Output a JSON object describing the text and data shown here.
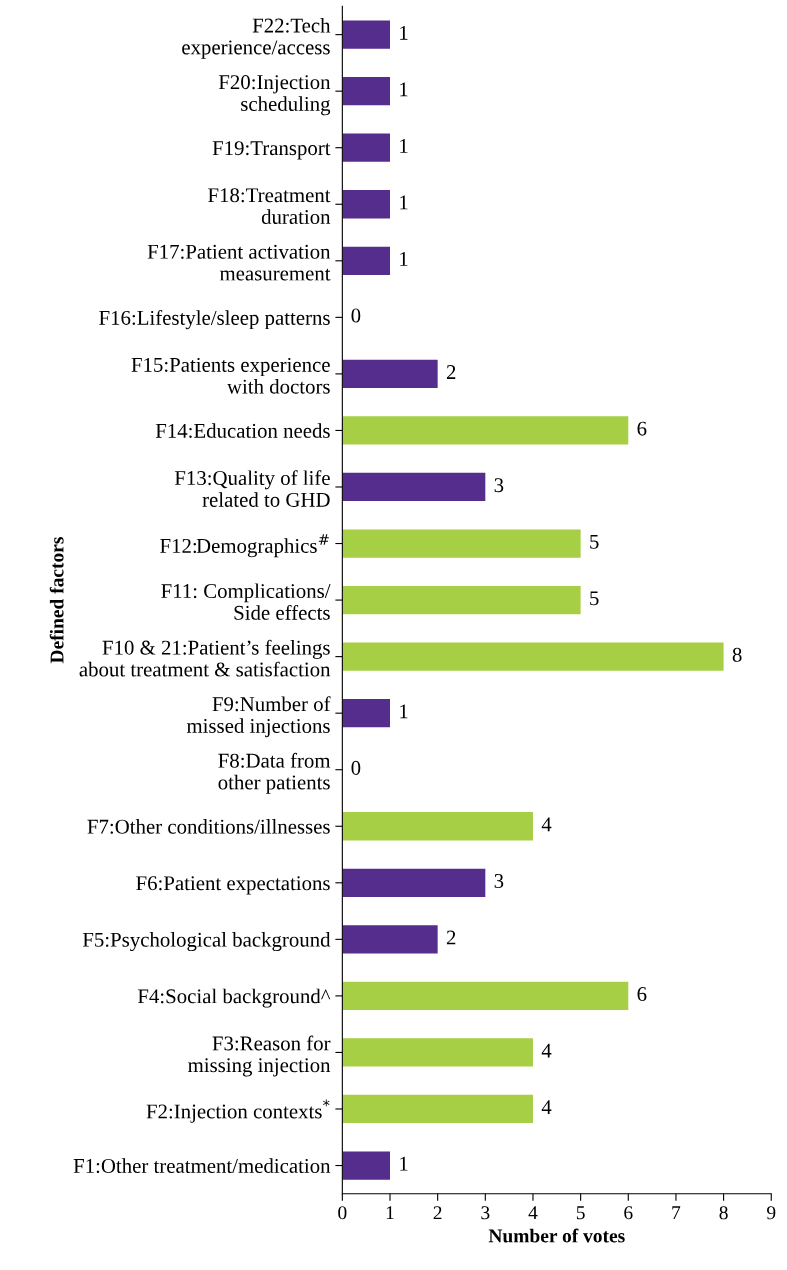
{
  "chart_data": {
    "type": "bar",
    "orientation": "horizontal",
    "categories": [
      "F22:Tech\nexperience/access",
      "F20:Injection\nscheduling",
      "F19:Transport",
      "F18:Treatment\nduration",
      "F17:Patient activation\nmeasurement",
      "F16:Lifestyle/sleep patterns",
      "F15:Patients experience\nwith doctors",
      "F14:Education needs",
      "F13:Quality of life\nrelated to GHD",
      "F12:Demographics$^{#}$",
      "F11: Complications/\nSide effects",
      "F10 & 21:Patient’s feelings\nabout treatment & satisfaction",
      "F9:Number of\nmissed injections",
      "F8:Data from\nother patients",
      "F7:Other conditions/illnesses",
      "F6:Patient expectations",
      "F5:Psychological background",
      "F4:Social background^",
      "F3:Reason for\nmissing injection",
      "F2:Injection contexts$^{*}$",
      "F1:Other treatment/medication"
    ],
    "values": [
      1,
      1,
      1,
      1,
      1,
      0,
      2,
      6,
      3,
      5,
      5,
      8,
      1,
      0,
      4,
      3,
      2,
      6,
      4,
      4,
      1
    ],
    "colors": [
      "#552d8c",
      "#552d8c",
      "#552d8c",
      "#552d8c",
      "#552d8c",
      "#552d8c",
      "#552d8c",
      "#a6cf45",
      "#552d8c",
      "#a6cf45",
      "#a6cf45",
      "#a6cf45",
      "#552d8c",
      "#552d8c",
      "#a6cf45",
      "#552d8c",
      "#552d8c",
      "#a6cf45",
      "#a6cf45",
      "#a6cf45",
      "#552d8c"
    ],
    "xlim": [
      0,
      9
    ],
    "xticks": [
      0,
      1,
      2,
      3,
      4,
      5,
      6,
      7,
      8,
      9
    ],
    "xlabel": "Number of votes",
    "ylabel": "Defined factors",
    "data_labels": true,
    "grid": false,
    "legend": false
  }
}
